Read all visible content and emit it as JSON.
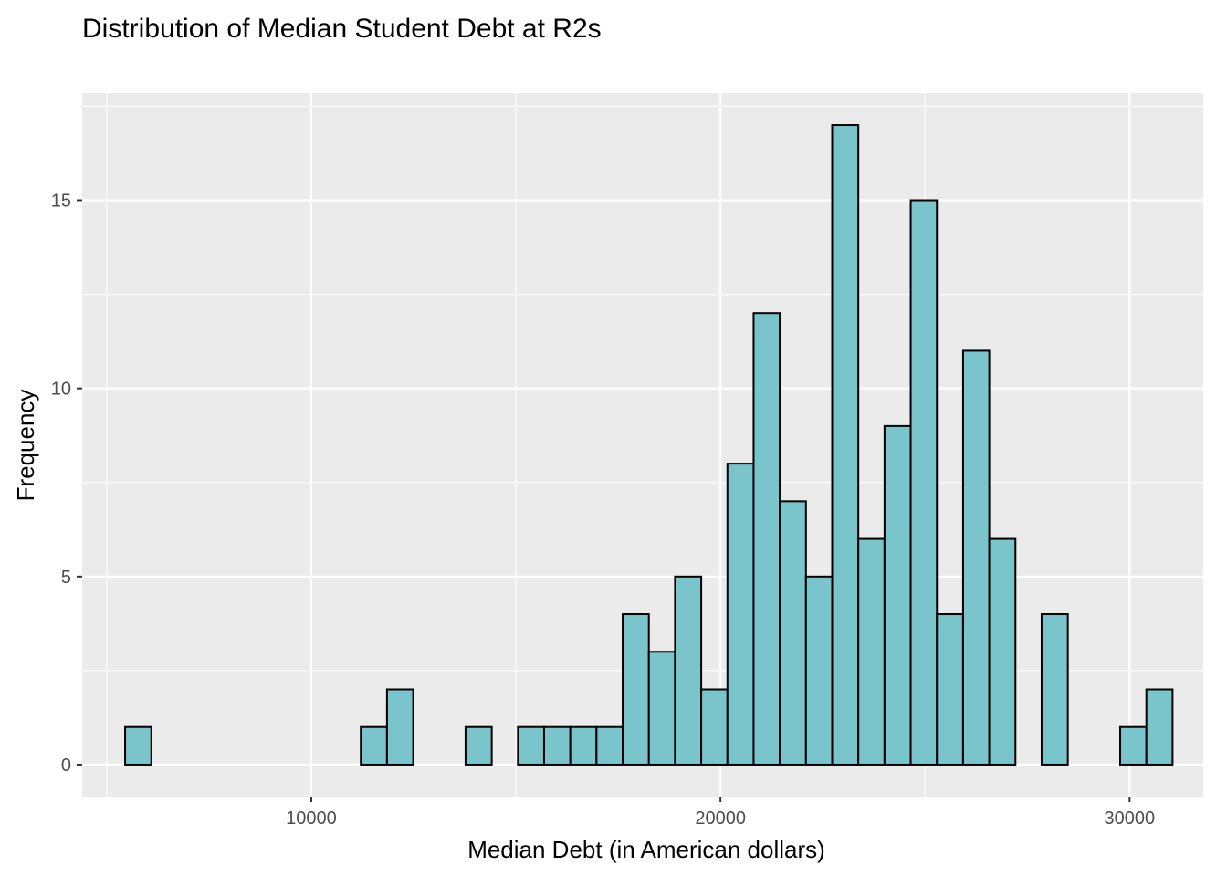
{
  "chart_data": {
    "type": "bar",
    "title": "Distribution of Median Student Debt at R2s",
    "xlabel": "Median Debt (in American dollars)",
    "ylabel": "Frequency",
    "xlim": [
      4400,
      31800
    ],
    "ylim": [
      -0.85,
      17.85
    ],
    "bin_width": 640,
    "xticks": [
      10000,
      20000,
      30000
    ],
    "yticks": [
      0,
      5,
      10,
      15
    ],
    "grid": true,
    "bins": [
      {
        "x": 5770,
        "count": 1
      },
      {
        "x": 6410,
        "count": 0
      },
      {
        "x": 7050,
        "count": 0
      },
      {
        "x": 7690,
        "count": 0
      },
      {
        "x": 8330,
        "count": 0
      },
      {
        "x": 8970,
        "count": 0
      },
      {
        "x": 9610,
        "count": 0
      },
      {
        "x": 10250,
        "count": 0
      },
      {
        "x": 10890,
        "count": 0
      },
      {
        "x": 11530,
        "count": 1
      },
      {
        "x": 12170,
        "count": 2
      },
      {
        "x": 12810,
        "count": 0
      },
      {
        "x": 13450,
        "count": 0
      },
      {
        "x": 14090,
        "count": 1
      },
      {
        "x": 14730,
        "count": 0
      },
      {
        "x": 15370,
        "count": 1
      },
      {
        "x": 16010,
        "count": 1
      },
      {
        "x": 16650,
        "count": 1
      },
      {
        "x": 17290,
        "count": 1
      },
      {
        "x": 17930,
        "count": 4
      },
      {
        "x": 18570,
        "count": 3
      },
      {
        "x": 19210,
        "count": 5
      },
      {
        "x": 19850,
        "count": 2
      },
      {
        "x": 20490,
        "count": 8
      },
      {
        "x": 21130,
        "count": 12
      },
      {
        "x": 21770,
        "count": 7
      },
      {
        "x": 22410,
        "count": 5
      },
      {
        "x": 23050,
        "count": 17
      },
      {
        "x": 23690,
        "count": 6
      },
      {
        "x": 24330,
        "count": 9
      },
      {
        "x": 24970,
        "count": 15
      },
      {
        "x": 25610,
        "count": 4
      },
      {
        "x": 26250,
        "count": 11
      },
      {
        "x": 26890,
        "count": 6
      },
      {
        "x": 27530,
        "count": 0
      },
      {
        "x": 28170,
        "count": 4
      },
      {
        "x": 28810,
        "count": 0
      },
      {
        "x": 29450,
        "count": 0
      },
      {
        "x": 30090,
        "count": 1
      },
      {
        "x": 30730,
        "count": 2
      }
    ],
    "colors": {
      "bar_fill": "#7ac4cc",
      "bar_stroke": "#000000",
      "panel_bg": "#ebebeb",
      "grid": "#ffffff",
      "tick_text": "#4d4d4d",
      "tick_mark": "#333333"
    }
  }
}
